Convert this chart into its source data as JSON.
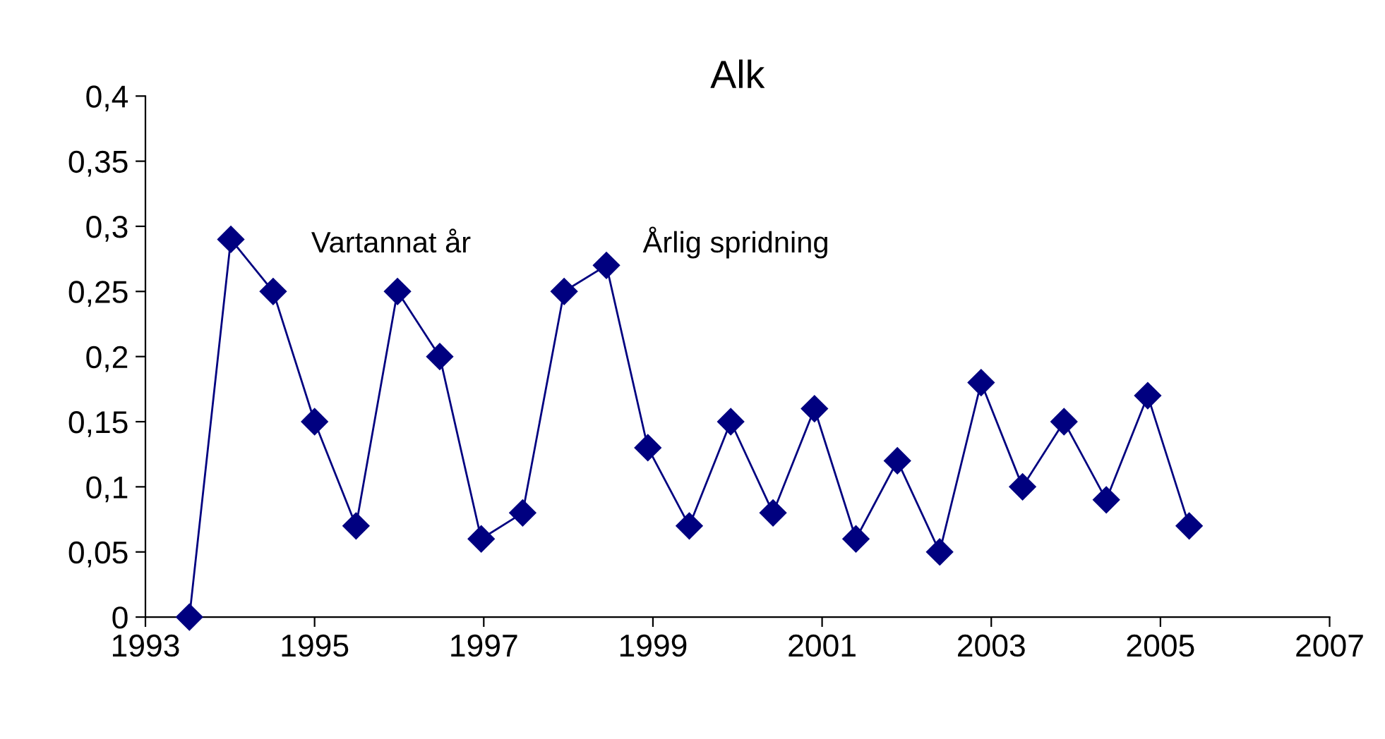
{
  "chart_data": {
    "type": "line",
    "title": "Alk",
    "x": [
      1993.52,
      1994.01,
      1994.51,
      1995.0,
      1995.49,
      1995.98,
      1996.48,
      1996.97,
      1997.46,
      1997.95,
      1998.45,
      1998.94,
      1999.43,
      1999.92,
      2000.42,
      2000.91,
      2001.4,
      2001.89,
      2002.39,
      2002.88,
      2003.37,
      2003.86,
      2004.36,
      2004.85,
      2005.34
    ],
    "series": [
      {
        "color": "#000080",
        "values": [
          0,
          0.29,
          0.25,
          0.15,
          0.07,
          0.25,
          0.2,
          0.06,
          0.08,
          0.25,
          0.27,
          0.13,
          0.07,
          0.15,
          0.08,
          0.16,
          0.06,
          0.12,
          0.05,
          0.18,
          0.1,
          0.15,
          0.09,
          0.17,
          0.07
        ]
      }
    ],
    "marker": "diamond",
    "line_style": "solid",
    "grid": false,
    "legend": false,
    "xlim": [
      1993,
      2007
    ],
    "xticks": [
      1993,
      1995,
      1997,
      1999,
      2001,
      2003,
      2005,
      2007
    ],
    "ylim": [
      0,
      0.4
    ],
    "yticks": [
      0,
      {
        "value": 0.05,
        "label": "0,05"
      },
      {
        "value": 0.1,
        "label": "0,1"
      },
      {
        "value": 0.15,
        "label": "0,15"
      },
      {
        "value": 0.2,
        "label": "0,2"
      },
      {
        "value": 0.25,
        "label": "0,25"
      },
      {
        "value": 0.3,
        "label": "0,3"
      },
      {
        "value": 0.35,
        "label": "0,35"
      },
      {
        "value": 0.4,
        "label": "0,4"
      }
    ],
    "annotations": [
      "Vartannat år",
      "Årlig spridning"
    ]
  }
}
